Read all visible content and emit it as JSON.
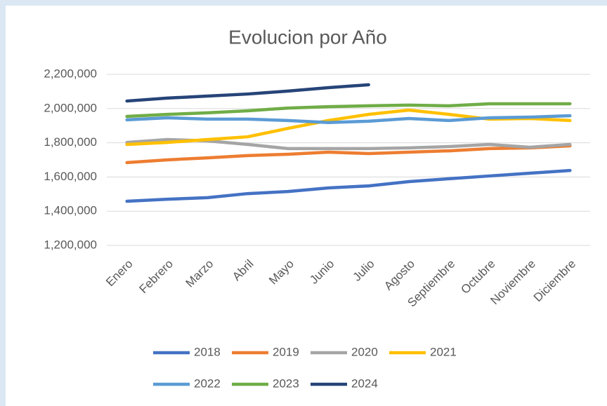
{
  "chart_data": {
    "type": "line",
    "title": "Evolucion por Año",
    "categories": [
      "Enero",
      "Febrero",
      "Marzo",
      "Abril",
      "Mayo",
      "Junio",
      "Julio",
      "Agosto",
      "Septiembre",
      "Octubre",
      "Noviembre",
      "Diciembre"
    ],
    "series": [
      {
        "name": "2018",
        "color": "#4472c4",
        "values": [
          1458000,
          1470000,
          1479000,
          1503000,
          1515000,
          1536000,
          1548000,
          1573000,
          1590000,
          1606000,
          1622000,
          1638000
        ]
      },
      {
        "name": "2019",
        "color": "#ed7d31",
        "values": [
          1684000,
          1700000,
          1712000,
          1725000,
          1733000,
          1745000,
          1737000,
          1745000,
          1753000,
          1766000,
          1770000,
          1782000
        ]
      },
      {
        "name": "2020",
        "color": "#a5a5a5",
        "values": [
          1802000,
          1819000,
          1811000,
          1790000,
          1766000,
          1766000,
          1766000,
          1770000,
          1778000,
          1790000,
          1774000,
          1790000
        ]
      },
      {
        "name": "2021",
        "color": "#ffc000",
        "values": [
          1790000,
          1802000,
          1819000,
          1835000,
          1884000,
          1930000,
          1966000,
          1991000,
          1966000,
          1938000,
          1942000,
          1930000
        ]
      },
      {
        "name": "2022",
        "color": "#5b9bd5",
        "values": [
          1934000,
          1946000,
          1938000,
          1938000,
          1930000,
          1918000,
          1926000,
          1942000,
          1930000,
          1946000,
          1950000,
          1958000
        ]
      },
      {
        "name": "2023",
        "color": "#70ad47",
        "values": [
          1954000,
          1966000,
          1975000,
          1987000,
          2003000,
          2011000,
          2016000,
          2020000,
          2016000,
          2028000,
          2028000,
          2028000
        ]
      },
      {
        "name": "2024",
        "color": "#264478",
        "values": [
          2044000,
          2061000,
          2073000,
          2085000,
          2102000,
          2122000,
          2139000,
          null,
          null,
          null,
          null,
          null
        ]
      }
    ],
    "ylim": [
      1200000,
      2200000
    ],
    "yticks": [
      {
        "value": 1200000,
        "label": "1,200,000"
      },
      {
        "value": 1400000,
        "label": "1,400,000"
      },
      {
        "value": 1600000,
        "label": "1,600,000"
      },
      {
        "value": 1800000,
        "label": "1,800,000"
      },
      {
        "value": 2000000,
        "label": "2,000,000"
      },
      {
        "value": 2200000,
        "label": "2,200,000"
      }
    ],
    "grid": true,
    "legend": "bottom"
  }
}
